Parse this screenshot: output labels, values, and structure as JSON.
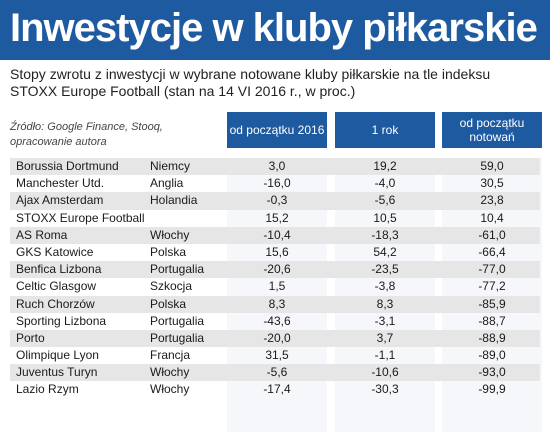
{
  "title": "Inwestycje w kluby piłkarskie",
  "subtitle": "Stopy zwrotu z inwestycji w wybrane notowane kluby piłkarskie na tle indeksu STOXX Europe Football (stan na 14 VI 2016 r., w proc.)",
  "source": "Źródło: Google Finance, Stooq, opracowanie autora",
  "colors": {
    "header": "#1e5aa0",
    "shaded_row": "#e6e6e6"
  },
  "chart_data": {
    "type": "table",
    "title": "Inwestycje w kluby piłkarskie",
    "columns": [
      "od początku 2016",
      "1 rok",
      "od początku notowań"
    ],
    "rows": [
      {
        "club": "Borussia Dortmund",
        "country": "Niemcy",
        "values": [
          "3,0",
          "19,2",
          "59,0"
        ]
      },
      {
        "club": "Manchester Utd.",
        "country": "Anglia",
        "values": [
          "-16,0",
          "-4,0",
          "30,5"
        ]
      },
      {
        "club": "Ajax Amsterdam",
        "country": "Holandia",
        "values": [
          "-0,3",
          "-5,6",
          "23,8"
        ]
      },
      {
        "club": "STOXX Europe Football",
        "country": "",
        "values": [
          "15,2",
          "10,5",
          "10,4"
        ]
      },
      {
        "club": "AS Roma",
        "country": "Włochy",
        "values": [
          "-10,4",
          "-18,3",
          "-61,0"
        ]
      },
      {
        "club": "GKS Katowice",
        "country": "Polska",
        "values": [
          "15,6",
          "54,2",
          "-66,4"
        ]
      },
      {
        "club": "Benfica Lizbona",
        "country": "Portugalia",
        "values": [
          "-20,6",
          "-23,5",
          "-77,0"
        ]
      },
      {
        "club": "Celtic Glasgow",
        "country": "Szkocja",
        "values": [
          "1,5",
          "-3,8",
          "-77,2"
        ]
      },
      {
        "club": "Ruch Chorzów",
        "country": "Polska",
        "values": [
          "8,3",
          "8,3",
          "-85,9"
        ]
      },
      {
        "club": "Sporting Lizbona",
        "country": "Portugalia",
        "values": [
          "-43,6",
          "-3,1",
          "-88,7"
        ]
      },
      {
        "club": "Porto",
        "country": "Portugalia",
        "values": [
          "-20,0",
          "3,7",
          "-88,9"
        ]
      },
      {
        "club": "Olimpique Lyon",
        "country": "Francja",
        "values": [
          "31,5",
          "-1,1",
          "-89,0"
        ]
      },
      {
        "club": "Juventus Turyn",
        "country": "Włochy",
        "values": [
          "-5,6",
          "-10,6",
          "-93,0"
        ]
      },
      {
        "club": "Lazio Rzym",
        "country": "Włochy",
        "values": [
          "-17,4",
          "-30,3",
          "-99,9"
        ]
      }
    ]
  }
}
